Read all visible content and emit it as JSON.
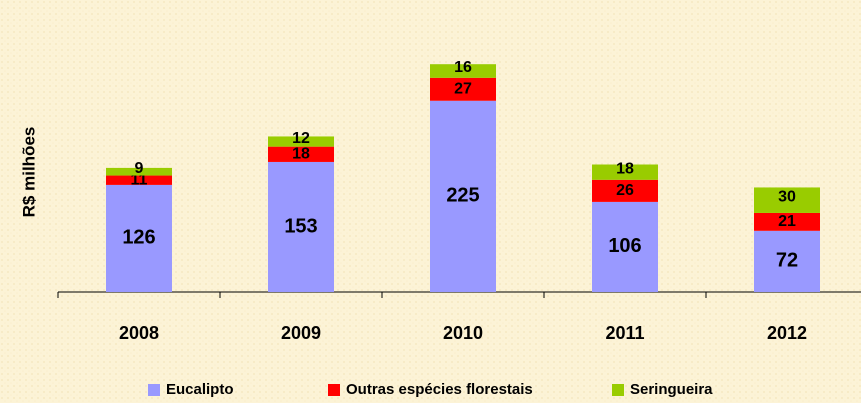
{
  "chart_data": {
    "type": "stacked_bar",
    "y_label": "R$ milhões",
    "categories": [
      "2008",
      "2009",
      "2010",
      "2011",
      "2012"
    ],
    "series": [
      {
        "name": "Eucalipto",
        "color": "#9999ff",
        "values": [
          126,
          153,
          225,
          106,
          72
        ]
      },
      {
        "name": "Outras espécies florestais",
        "color": "#ff0000",
        "values": [
          11,
          18,
          27,
          26,
          21
        ]
      },
      {
        "name": "Seringueira",
        "color": "#99cc00",
        "values": [
          9,
          12,
          16,
          18,
          30
        ]
      }
    ],
    "ylim": [
      0,
      300
    ],
    "legend": "bottom"
  }
}
